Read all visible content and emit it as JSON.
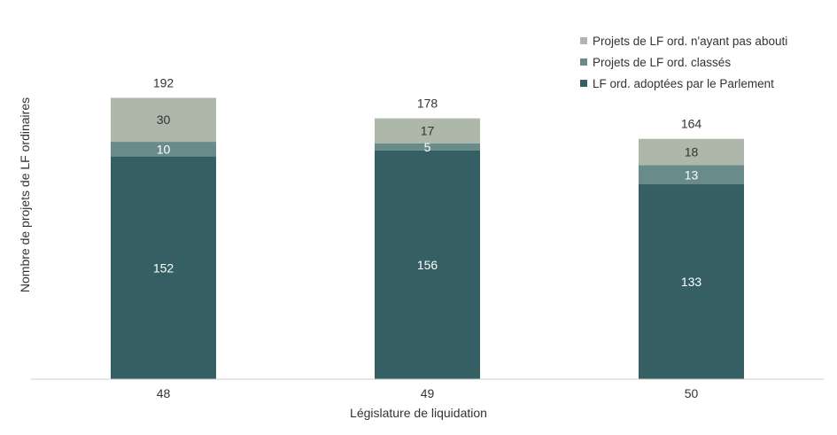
{
  "chart_data": {
    "type": "bar",
    "stacked": true,
    "title": "",
    "xlabel": "Législature de liquidation",
    "ylabel": "Nombre de projets de LF ordinaires",
    "categories": [
      "48",
      "49",
      "50"
    ],
    "series": [
      {
        "name": "LF ord. adoptées par le Parlement",
        "values": [
          152,
          156,
          133
        ],
        "color": "#355f63"
      },
      {
        "name": "Projets de LF ord. classés",
        "values": [
          10,
          5,
          13
        ],
        "color": "#6a8b8b"
      },
      {
        "name": "Projets de LF ord. n'ayant pas abouti",
        "values": [
          30,
          17,
          18
        ],
        "color": "#adb8aa"
      }
    ],
    "totals": [
      "192",
      "178",
      "164"
    ],
    "ylim": [
      0,
      200
    ],
    "grid": false,
    "legend_position": "top-right",
    "legend_order": [
      2,
      1,
      0
    ],
    "label_color_inside": "#ffffff",
    "label_color_light": "#333333"
  }
}
